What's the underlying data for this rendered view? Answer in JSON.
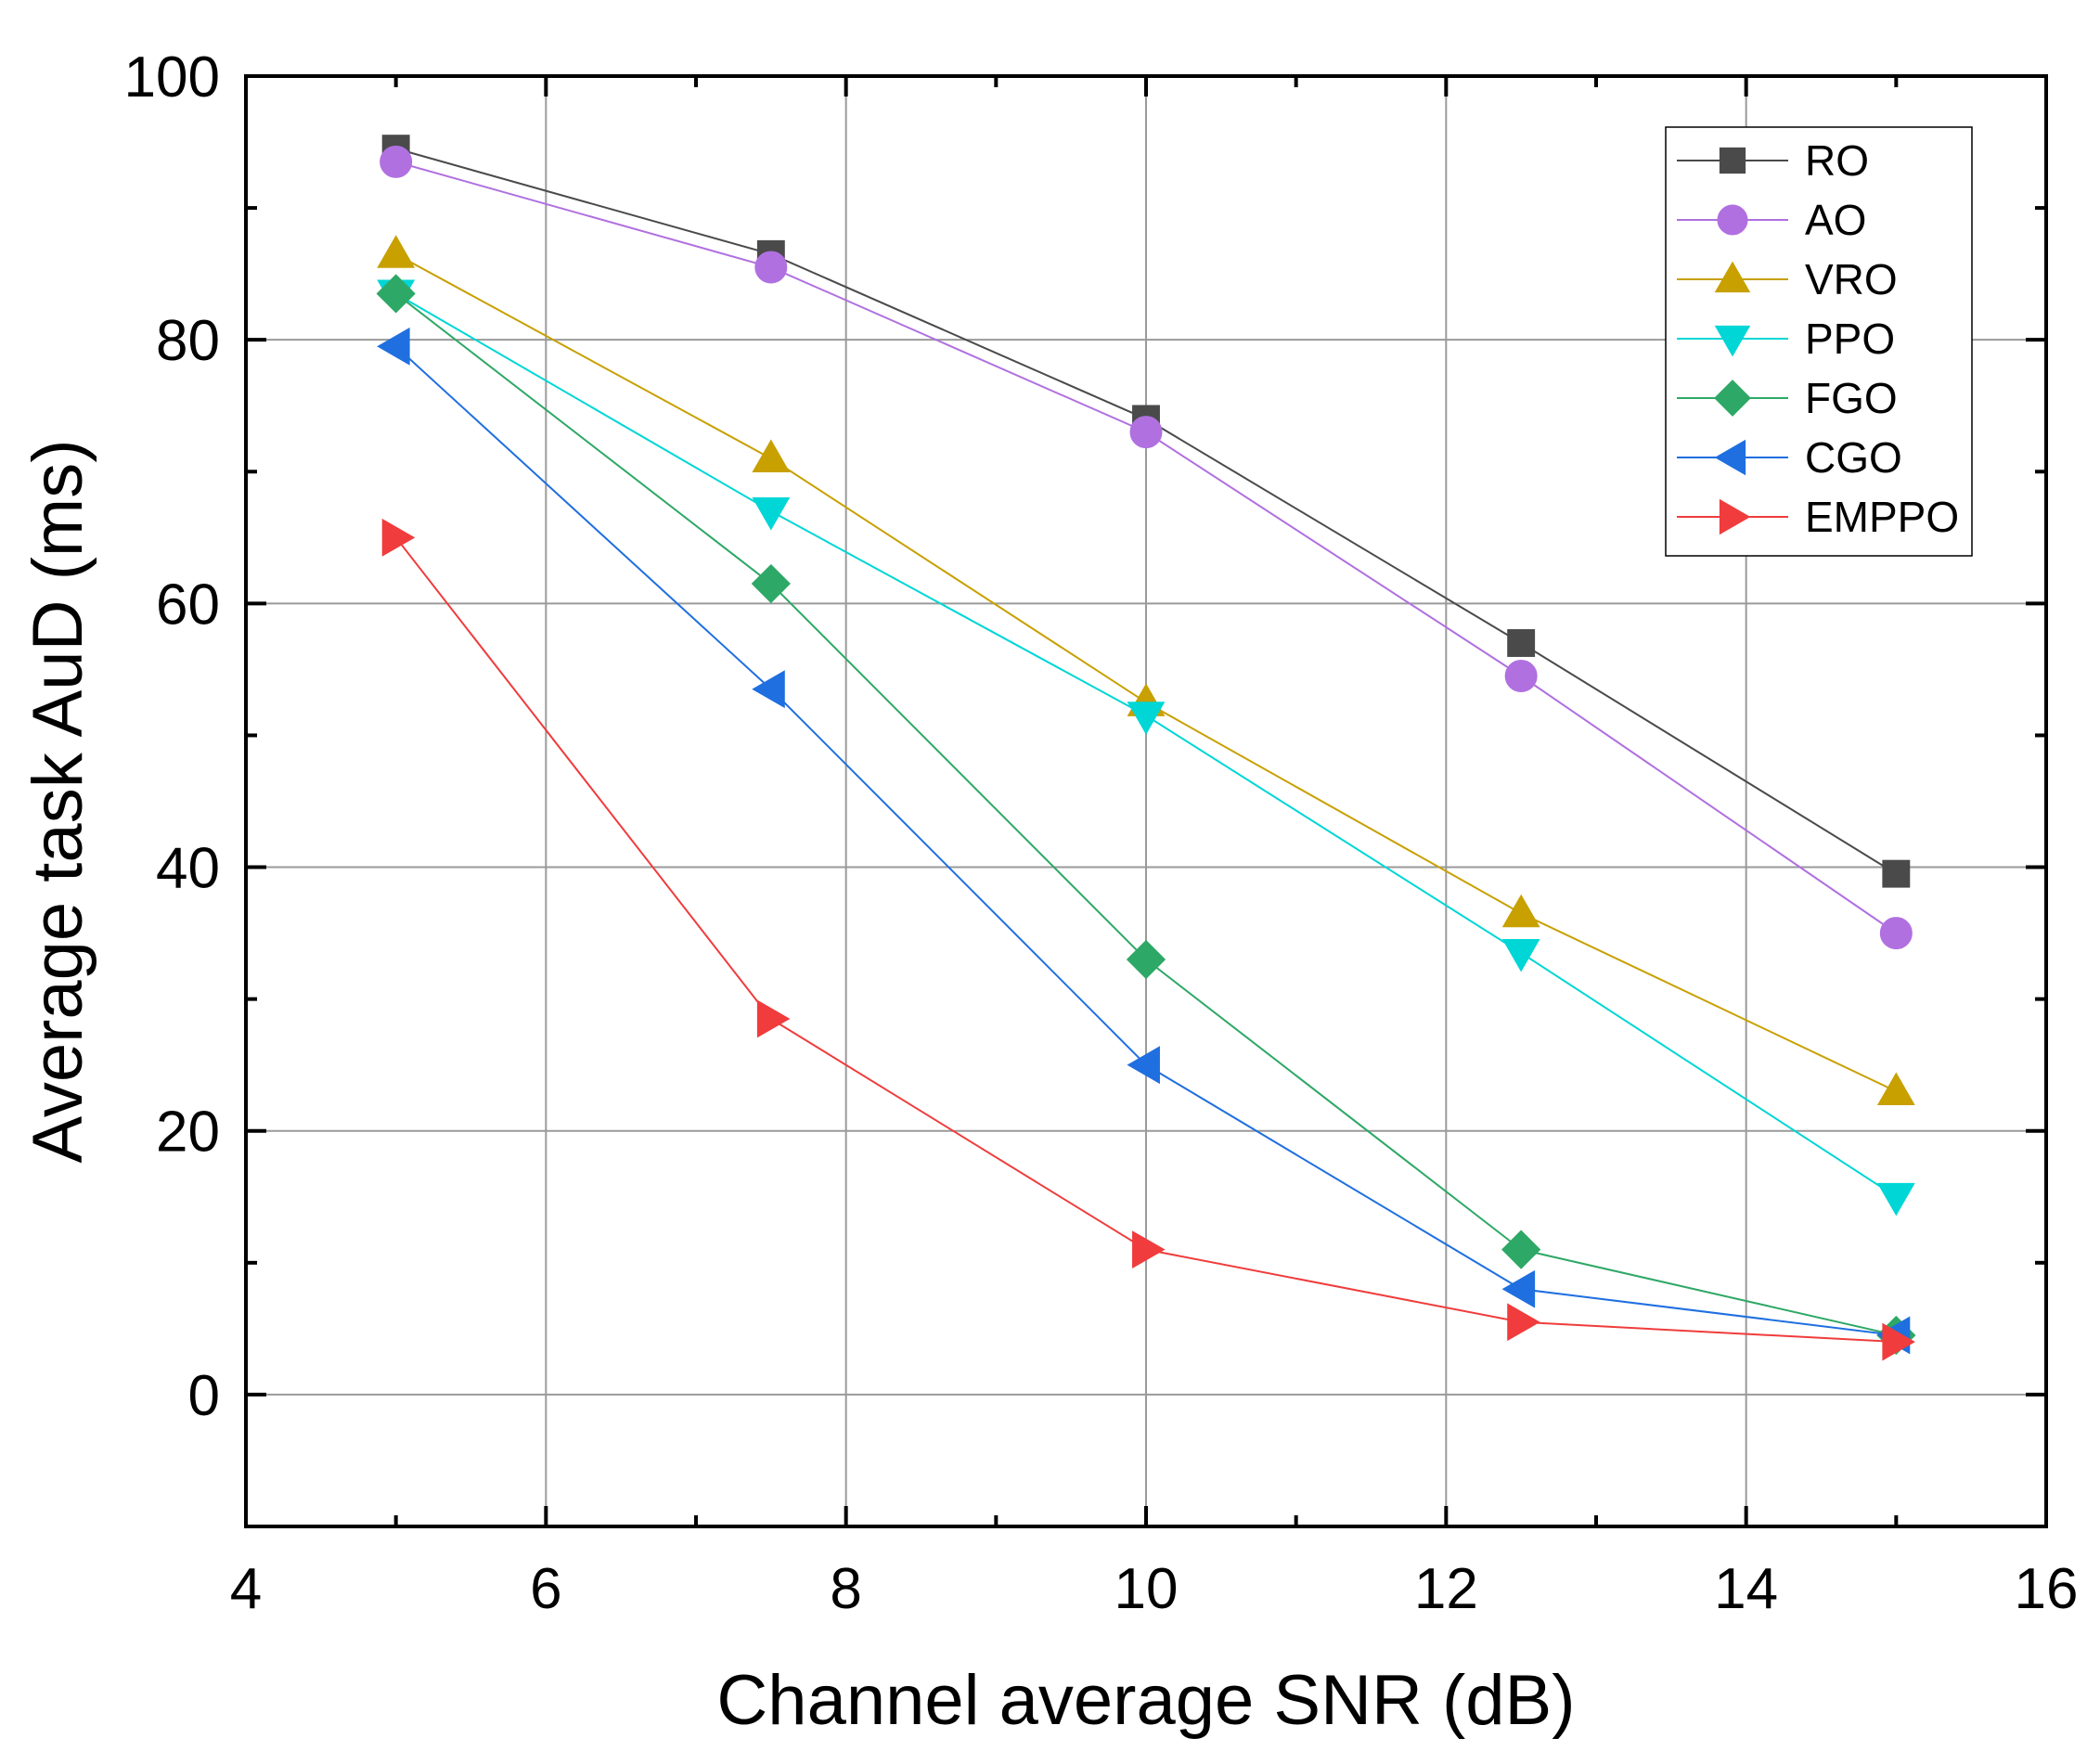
{
  "chart_data": {
    "type": "line",
    "title": "",
    "xlabel": "Channel average SNR (dB)",
    "ylabel": "Average task AuD (ms)",
    "xlim": [
      4,
      16
    ],
    "ylim": [
      -10,
      100
    ],
    "xticks": [
      4,
      6,
      8,
      10,
      12,
      14,
      16
    ],
    "yticks": [
      0,
      20,
      40,
      60,
      80,
      100
    ],
    "xtick_labels": [
      "4",
      "6",
      "8",
      "10",
      "12",
      "14",
      "16"
    ],
    "ytick_labels": [
      "0",
      "20",
      "40",
      "60",
      "80",
      "100"
    ],
    "grid": true,
    "legend_position": "top-right",
    "x": [
      5,
      7.5,
      10,
      12.5,
      15
    ],
    "series": [
      {
        "name": "RO",
        "color": "#4a4a4a",
        "marker": "square",
        "values": [
          94.5,
          86.5,
          74,
          57,
          39.5
        ]
      },
      {
        "name": "AO",
        "color": "#b070e0",
        "marker": "circle",
        "values": [
          93.5,
          85.5,
          73,
          54.5,
          35
        ]
      },
      {
        "name": "VRO",
        "color": "#c8a000",
        "marker": "triangle-up",
        "values": [
          86.5,
          71,
          52.5,
          36.5,
          23
        ]
      },
      {
        "name": "PPO",
        "color": "#00d6d6",
        "marker": "triangle-down",
        "values": [
          83.5,
          67,
          51.5,
          33.5,
          15
        ]
      },
      {
        "name": "FGO",
        "color": "#2ea866",
        "marker": "diamond",
        "values": [
          83.5,
          61.5,
          33,
          11,
          4.5
        ]
      },
      {
        "name": "CGO",
        "color": "#1f6fe0",
        "marker": "triangle-left",
        "values": [
          79.5,
          53.5,
          25,
          8,
          4.5
        ]
      },
      {
        "name": "EMPPO",
        "color": "#f03c3c",
        "marker": "triangle-right",
        "values": [
          65,
          28.5,
          11,
          5.5,
          4
        ]
      }
    ]
  }
}
